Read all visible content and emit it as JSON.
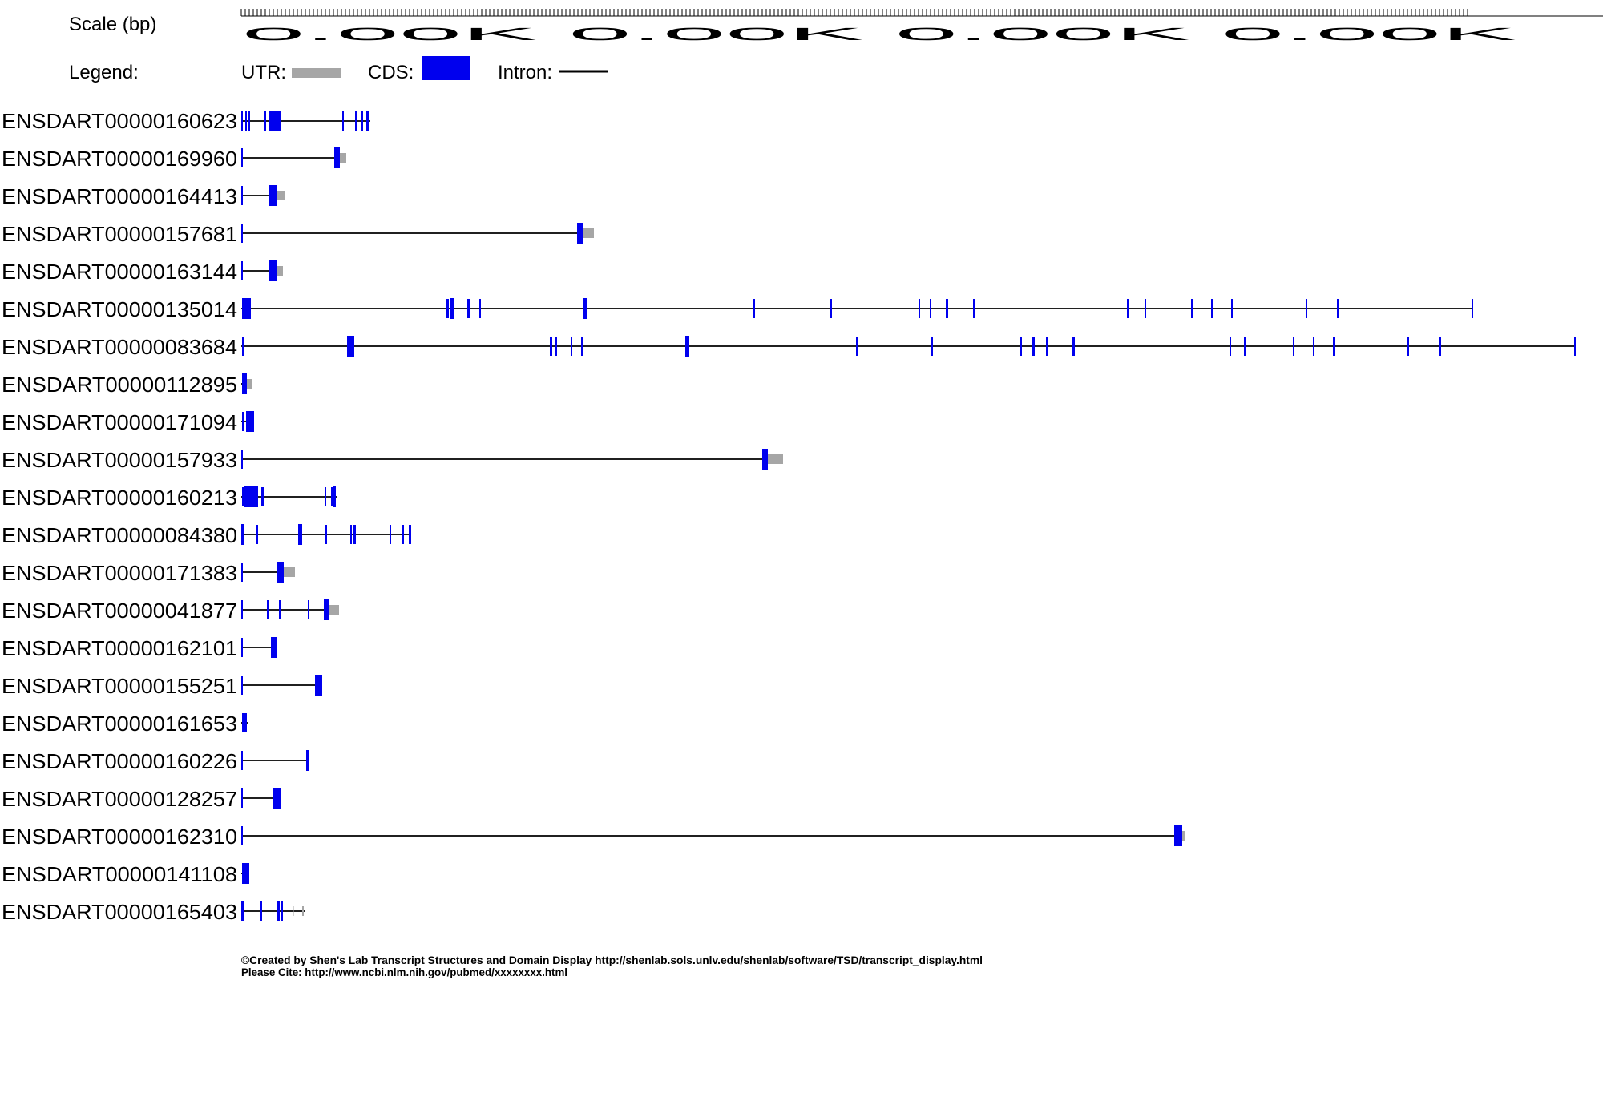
{
  "scale": {
    "label": "Scale (bp)",
    "tick_text": "0.00K 0.00K 0.00K 0.00K"
  },
  "legend": {
    "label": "Legend:",
    "utr_label": "UTR:",
    "cds_label": "CDS:",
    "intron_label": "Intron:"
  },
  "colors": {
    "cds": "#0000ee",
    "utr": "#a6a6a6",
    "intron": "#000000"
  },
  "transcripts": [
    {
      "id": "ENSDART00000160623"
    },
    {
      "id": "ENSDART00000169960"
    },
    {
      "id": "ENSDART00000164413"
    },
    {
      "id": "ENSDART00000157681"
    },
    {
      "id": "ENSDART00000163144"
    },
    {
      "id": "ENSDART00000135014"
    },
    {
      "id": "ENSDART00000083684"
    },
    {
      "id": "ENSDART00000112895"
    },
    {
      "id": "ENSDART00000171094"
    },
    {
      "id": "ENSDART00000157933"
    },
    {
      "id": "ENSDART00000160213"
    },
    {
      "id": "ENSDART00000084380"
    },
    {
      "id": "ENSDART00000171383"
    },
    {
      "id": "ENSDART00000041877"
    },
    {
      "id": "ENSDART00000162101"
    },
    {
      "id": "ENSDART00000155251"
    },
    {
      "id": "ENSDART00000161653"
    },
    {
      "id": "ENSDART00000160226"
    },
    {
      "id": "ENSDART00000128257"
    },
    {
      "id": "ENSDART00000162310"
    },
    {
      "id": "ENSDART00000141108"
    },
    {
      "id": "ENSDART00000165403"
    }
  ],
  "footer": {
    "line1": "©Created by Shen's Lab Transcript Structures and Domain Display http://shenlab.sols.unlv.edu/shenlab/software/TSD/transcript_display.html",
    "line2": "Please Cite: http://www.ncbi.nlm.nih.gov/pubmed/xxxxxxxx.html"
  }
}
